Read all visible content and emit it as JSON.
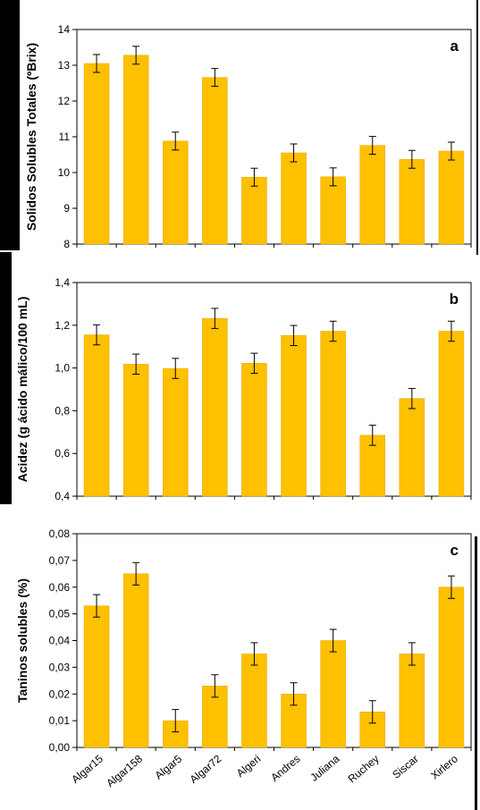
{
  "colors": {
    "bar": "#FFC000",
    "bar_edge": "#E0A800",
    "axis": "#000000",
    "side_block": "#000000"
  },
  "chart_data": [
    {
      "type": "bar",
      "panel_label": "a",
      "ylabel": "Solidos Solubles Totales (ºBrix)",
      "categories": [
        "Algar15",
        "Algar158",
        "Algar5",
        "Algar72",
        "Algeri",
        "Andres",
        "Juliana",
        "Ruchey",
        "Siscar",
        "Xirlero"
      ],
      "values": [
        13.05,
        13.28,
        10.88,
        12.66,
        9.87,
        10.55,
        9.88,
        10.76,
        10.37,
        10.6
      ],
      "errors": [
        0.25,
        0.25,
        0.25,
        0.25,
        0.25,
        0.25,
        0.25,
        0.25,
        0.25,
        0.25
      ],
      "ylim": [
        8,
        14
      ],
      "yticks": [
        8,
        9,
        10,
        11,
        12,
        13,
        14
      ],
      "ytick_labels": [
        "8",
        "9",
        "10",
        "11",
        "12",
        "13",
        "14"
      ],
      "grid": false
    },
    {
      "type": "bar",
      "panel_label": "b",
      "ylabel": "Acidez (g ácido málico/100 mL)",
      "categories": [
        "Algar15",
        "Algar158",
        "Algar5",
        "Algar72",
        "Algeri",
        "Andres",
        "Juliana",
        "Ruchey",
        "Siscar",
        "Xirlero"
      ],
      "values": [
        1.155,
        1.018,
        0.998,
        1.232,
        1.022,
        1.152,
        1.172,
        0.685,
        0.857,
        1.172
      ],
      "errors": [
        0.047,
        0.047,
        0.047,
        0.047,
        0.047,
        0.047,
        0.047,
        0.047,
        0.047,
        0.047
      ],
      "ylim": [
        0.4,
        1.4
      ],
      "yticks": [
        0.4,
        0.6,
        0.8,
        1.0,
        1.2,
        1.4
      ],
      "ytick_labels": [
        "0,4",
        "0,6",
        "0,8",
        "1,0",
        "1,2",
        "1,4"
      ],
      "grid": false
    },
    {
      "type": "bar",
      "panel_label": "c",
      "ylabel": "Taninos solubles (%)",
      "categories": [
        "Algar15",
        "Algar158",
        "Algar5",
        "Algar72",
        "Algeri",
        "Andres",
        "Juliana",
        "Ruchey",
        "Siscar",
        "Xirlero"
      ],
      "values": [
        0.053,
        0.065,
        0.01,
        0.023,
        0.035,
        0.02,
        0.04,
        0.0133,
        0.035,
        0.06
      ],
      "errors": [
        0.0042,
        0.0042,
        0.0042,
        0.0042,
        0.0042,
        0.0042,
        0.0042,
        0.0042,
        0.0042,
        0.0042
      ],
      "ylim": [
        0.0,
        0.08
      ],
      "yticks": [
        0.0,
        0.01,
        0.02,
        0.03,
        0.04,
        0.05,
        0.06,
        0.07,
        0.08
      ],
      "ytick_labels": [
        "0,00",
        "0,01",
        "0,02",
        "0,03",
        "0,04",
        "0,05",
        "0,06",
        "0,07",
        "0,08"
      ],
      "show_xtick_labels": true,
      "grid": false
    }
  ]
}
